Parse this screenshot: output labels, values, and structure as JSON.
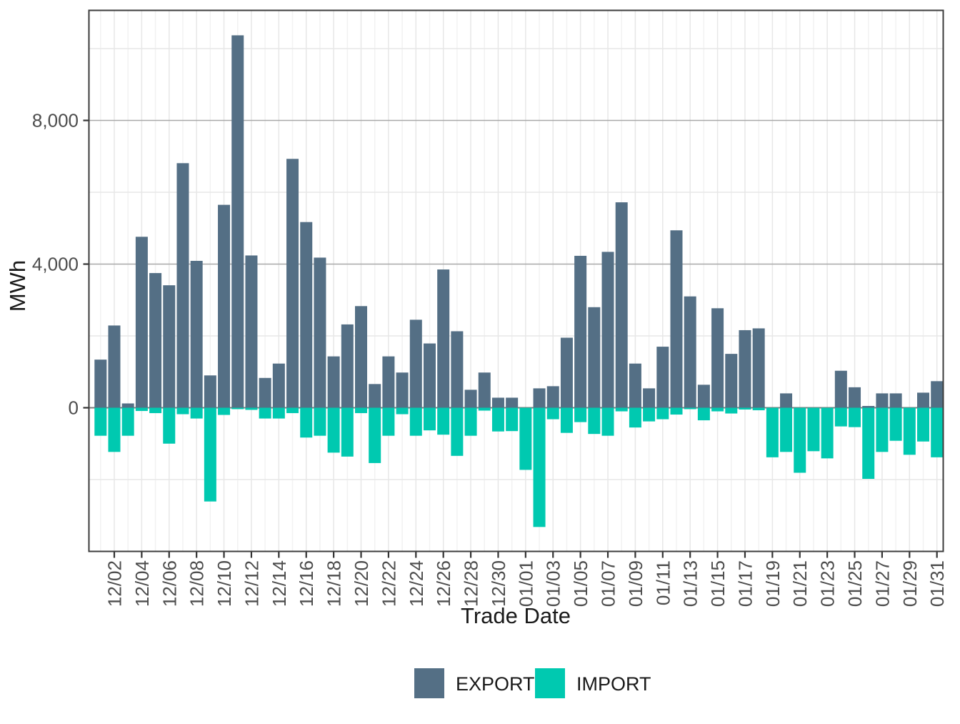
{
  "figure": {
    "y_axis_title": "MWh",
    "x_axis_title": "Trade Date",
    "legend": {
      "export_label": "EXPORT",
      "import_label": "IMPORT"
    }
  },
  "chart_data": {
    "type": "bar",
    "title": "",
    "xlabel": "Trade Date",
    "ylabel": "MWh",
    "bar_style": "mirrored: EXPORT plotted above zero, IMPORT plotted below zero",
    "grid": "on",
    "legend_position": "bottom",
    "ylim": [
      -4000,
      11050
    ],
    "y_major_ticks": [
      0,
      4000,
      8000
    ],
    "y_tick_labels": [
      "0",
      "4,000",
      "8,000"
    ],
    "y_minor_ticks": [
      -2000,
      2000,
      6000,
      10000
    ],
    "x_tick_labels": [
      "12/02",
      "12/04",
      "12/06",
      "12/08",
      "12/10",
      "12/12",
      "12/14",
      "12/16",
      "12/18",
      "12/20",
      "12/22",
      "12/24",
      "12/26",
      "12/28",
      "12/30",
      "01/01",
      "01/03",
      "01/05",
      "01/07",
      "01/09",
      "01/11",
      "01/13",
      "01/15",
      "01/17",
      "01/19",
      "01/21",
      "01/23",
      "01/25",
      "01/27",
      "01/29",
      "01/31"
    ],
    "categories": [
      "12/01",
      "12/02",
      "12/03",
      "12/04",
      "12/05",
      "12/06",
      "12/07",
      "12/08",
      "12/09",
      "12/10",
      "12/11",
      "12/12",
      "12/13",
      "12/14",
      "12/15",
      "12/16",
      "12/17",
      "12/18",
      "12/19",
      "12/20",
      "12/21",
      "12/22",
      "12/23",
      "12/24",
      "12/25",
      "12/26",
      "12/27",
      "12/28",
      "12/29",
      "12/30",
      "12/31",
      "01/01",
      "01/02",
      "01/03",
      "01/04",
      "01/05",
      "01/06",
      "01/07",
      "01/08",
      "01/09",
      "01/10",
      "01/11",
      "01/12",
      "01/13",
      "01/14",
      "01/15",
      "01/16",
      "01/17",
      "01/18",
      "01/19",
      "01/20",
      "01/21",
      "01/22",
      "01/23",
      "01/24",
      "01/25",
      "01/26",
      "01/27",
      "01/28",
      "01/29",
      "01/30",
      "01/31"
    ],
    "series": [
      {
        "name": "EXPORT",
        "color": "#546F85",
        "values": [
          1340,
          2290,
          120,
          4760,
          3750,
          3410,
          6810,
          4090,
          900,
          5650,
          10370,
          4240,
          830,
          1230,
          6930,
          5170,
          4180,
          1430,
          2320,
          2830,
          660,
          1430,
          980,
          2450,
          1790,
          3850,
          2130,
          500,
          980,
          280,
          280,
          0,
          540,
          600,
          1950,
          4230,
          2800,
          4340,
          5720,
          1230,
          540,
          1700,
          4940,
          3100,
          640,
          2770,
          1500,
          2160,
          2210,
          0,
          400,
          0,
          0,
          0,
          1030,
          570,
          50,
          400,
          400,
          0,
          420,
          740
        ]
      },
      {
        "name": "IMPORT",
        "color": "#00C9B0",
        "values": [
          -780,
          -1230,
          -780,
          -90,
          -150,
          -1000,
          -180,
          -300,
          -2610,
          -200,
          -40,
          -60,
          -300,
          -300,
          -150,
          -830,
          -780,
          -1250,
          -1360,
          -150,
          -1540,
          -780,
          -180,
          -780,
          -630,
          -750,
          -1340,
          -780,
          -80,
          -660,
          -650,
          -1730,
          -3320,
          -320,
          -700,
          -400,
          -730,
          -780,
          -100,
          -550,
          -380,
          -320,
          -190,
          -40,
          -350,
          -100,
          -160,
          -50,
          -70,
          -1380,
          -1230,
          -1810,
          -1210,
          -1410,
          -520,
          -540,
          -1980,
          -1230,
          -920,
          -1310,
          -940,
          -1380
        ]
      }
    ]
  }
}
